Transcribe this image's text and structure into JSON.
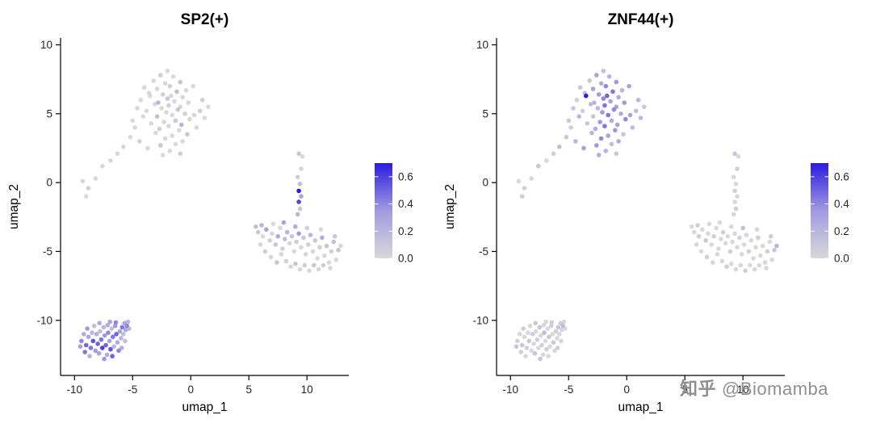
{
  "watermark": {
    "logo": "知乎",
    "handle": "@Biomamba"
  },
  "chart_data": {
    "type": "scatter",
    "description": "Two UMAP feature plots of the same single-cell embedding colored by regulon activity",
    "color_scale": {
      "domain": [
        0,
        0.7
      ],
      "stops": [
        [
          0,
          "#D8D8D8"
        ],
        [
          0.5,
          "#A29AE0"
        ],
        [
          1,
          "#2A1CDE"
        ]
      ],
      "legend_ticks": [
        0.0,
        0.2,
        0.4,
        0.6
      ]
    },
    "panels": [
      {
        "title": "SP2(+)",
        "xlabel": "umap_1",
        "ylabel": "umap_2",
        "xlim": [
          -11.2,
          13.6
        ],
        "ylim": [
          -14.0,
          10.5
        ],
        "xticks": [
          -10,
          -5,
          0,
          5,
          10
        ],
        "yticks": [
          -10,
          -5,
          0,
          5,
          10
        ],
        "value_index": 2
      },
      {
        "title": "ZNF44(+)",
        "xlabel": "umap_1",
        "ylabel": "umap_2",
        "xlim": [
          -11.2,
          13.6
        ],
        "ylim": [
          -14.0,
          10.5
        ],
        "xticks": [
          -10,
          -5,
          0,
          5,
          10
        ],
        "yticks": [
          -10,
          -5,
          0,
          5,
          10
        ],
        "value_index": 3
      }
    ],
    "shared_embedding_points_format": "[umap_1, umap_2, SP2_activity, ZNF44_activity]",
    "shared_embedding_points": [
      [
        -2.0,
        8.1,
        0,
        0.15
      ],
      [
        -2.6,
        7.8,
        0.05,
        0.3
      ],
      [
        -1.5,
        7.7,
        0,
        0.2
      ],
      [
        -3.2,
        7.4,
        0,
        0.1
      ],
      [
        -0.9,
        7.3,
        0.1,
        0.35
      ],
      [
        -2.2,
        7.2,
        0,
        0.25
      ],
      [
        -1.8,
        7.0,
        0.05,
        0.4
      ],
      [
        -4.0,
        6.9,
        0,
        0.1
      ],
      [
        -2.9,
        6.8,
        0,
        0.3
      ],
      [
        -0.4,
        6.7,
        0,
        0.2
      ],
      [
        -1.2,
        6.6,
        0.15,
        0.45
      ],
      [
        -3.6,
        6.5,
        0,
        0.15
      ],
      [
        -2.4,
        6.4,
        0.05,
        0.35
      ],
      [
        -1.7,
        6.3,
        0,
        0.5
      ],
      [
        -3.5,
        6.3,
        0,
        0.7
      ],
      [
        -0.7,
        6.2,
        0,
        0.25
      ],
      [
        -2.0,
        6.1,
        0.1,
        0.4
      ],
      [
        -4.3,
        6.0,
        0,
        0.05
      ],
      [
        -1.4,
        5.9,
        0,
        0.3
      ],
      [
        -2.8,
        5.8,
        0.2,
        0.2
      ],
      [
        -0.2,
        5.8,
        0,
        0.35
      ],
      [
        -3.1,
        5.7,
        0,
        0.15
      ],
      [
        -1.9,
        5.6,
        0.05,
        0.45
      ],
      [
        -0.9,
        5.5,
        0,
        0.3
      ],
      [
        -2.5,
        5.4,
        0,
        0.2
      ],
      [
        -4.6,
        5.4,
        0,
        0.1
      ],
      [
        -1.1,
        5.3,
        0.1,
        0.4
      ],
      [
        -3.8,
        5.2,
        0,
        0.05
      ],
      [
        -2.1,
        5.1,
        0,
        0.35
      ],
      [
        -0.5,
        5.0,
        0.05,
        0.25
      ],
      [
        -1.6,
        4.9,
        0,
        0.45
      ],
      [
        -2.9,
        4.8,
        0.15,
        0.1
      ],
      [
        -4.1,
        4.8,
        0,
        0.2
      ],
      [
        0.3,
        4.9,
        0,
        0.3
      ],
      [
        0.8,
        5.2,
        0.05,
        0.15
      ],
      [
        1.2,
        4.7,
        0,
        0.2
      ],
      [
        -0.1,
        4.6,
        0,
        0.4
      ],
      [
        -1.3,
        4.5,
        0.1,
        0.25
      ],
      [
        -2.3,
        4.4,
        0,
        0.35
      ],
      [
        -3.4,
        4.3,
        0,
        0.1
      ],
      [
        -0.8,
        4.2,
        0.2,
        0.3
      ],
      [
        -1.9,
        4.1,
        0,
        0.45
      ],
      [
        -4.8,
        4.0,
        0,
        0.05
      ],
      [
        0.5,
        4.0,
        0,
        0.15
      ],
      [
        -2.7,
        3.9,
        0.05,
        0.25
      ],
      [
        -1.0,
        3.8,
        0,
        0.35
      ],
      [
        -3.0,
        3.6,
        0,
        0.2
      ],
      [
        -0.3,
        3.5,
        0.1,
        0.1
      ],
      [
        -1.6,
        3.4,
        0,
        0.3
      ],
      [
        -2.2,
        3.2,
        0,
        0.4
      ],
      [
        -5.2,
        3.3,
        0,
        0.1
      ],
      [
        -4.4,
        3.0,
        0.05,
        0.2
      ],
      [
        -0.7,
        3.0,
        0,
        0.25
      ],
      [
        -1.3,
        2.8,
        0,
        0.15
      ],
      [
        -2.6,
        2.7,
        0.1,
        0.35
      ],
      [
        -3.7,
        2.5,
        0,
        0.3
      ],
      [
        -1.8,
        2.3,
        0,
        0.2
      ],
      [
        -0.9,
        2.1,
        0.05,
        0.1
      ],
      [
        -2.4,
        2.0,
        0,
        0.25
      ],
      [
        -5.8,
        2.6,
        0,
        0.15
      ],
      [
        -6.3,
        2.1,
        0,
        0.05
      ],
      [
        1.5,
        5.5,
        0,
        0.1
      ],
      [
        1.0,
        6.0,
        0.05,
        0.2
      ],
      [
        0.2,
        7.0,
        0,
        0.3
      ],
      [
        -5.0,
        4.5,
        0,
        0.1
      ],
      [
        -9.3,
        0.1,
        0,
        0
      ],
      [
        -8.8,
        -0.4,
        0.05,
        0.05
      ],
      [
        -8.2,
        0.3,
        0,
        0
      ],
      [
        -7.6,
        1.2,
        0,
        0.1
      ],
      [
        -6.9,
        1.6,
        0,
        0
      ],
      [
        -9.0,
        -1.0,
        0,
        0.05
      ],
      [
        5.8,
        -3.6,
        0.1,
        0
      ],
      [
        6.2,
        -3.9,
        0,
        0.05
      ],
      [
        6.5,
        -3.4,
        0.3,
        0
      ],
      [
        6.8,
        -4.2,
        0.05,
        0.1
      ],
      [
        7.0,
        -3.7,
        0,
        0
      ],
      [
        7.3,
        -4.5,
        0.1,
        0
      ],
      [
        7.5,
        -3.9,
        0.25,
        0.05
      ],
      [
        7.7,
        -3.3,
        0,
        0
      ],
      [
        7.9,
        -4.8,
        0.05,
        0
      ],
      [
        8.1,
        -4.1,
        0.15,
        0
      ],
      [
        8.3,
        -3.6,
        0.2,
        0.05
      ],
      [
        8.5,
        -4.4,
        0,
        0
      ],
      [
        8.7,
        -3.9,
        0.1,
        0
      ],
      [
        8.9,
        -5.0,
        0,
        0.05
      ],
      [
        9.1,
        -4.3,
        0.05,
        0
      ],
      [
        9.3,
        -3.7,
        0.35,
        0
      ],
      [
        9.5,
        -4.7,
        0,
        0
      ],
      [
        9.7,
        -4.0,
        0.1,
        0.05
      ],
      [
        9.9,
        -5.2,
        0,
        0
      ],
      [
        10.1,
        -4.5,
        0.05,
        0
      ],
      [
        10.3,
        -3.8,
        0.2,
        0
      ],
      [
        10.5,
        -5.0,
        0,
        0.05
      ],
      [
        10.7,
        -4.2,
        0.1,
        0
      ],
      [
        10.9,
        -5.5,
        0,
        0
      ],
      [
        11.1,
        -4.7,
        0.05,
        0
      ],
      [
        11.3,
        -4.0,
        0.25,
        0.05
      ],
      [
        11.5,
        -5.3,
        0,
        0
      ],
      [
        11.7,
        -4.6,
        0.1,
        0
      ],
      [
        11.9,
        -5.8,
        0,
        0
      ],
      [
        12.1,
        -5.0,
        0.05,
        0.05
      ],
      [
        12.3,
        -4.3,
        0.15,
        0
      ],
      [
        12.5,
        -5.6,
        0,
        0
      ],
      [
        12.7,
        -4.9,
        0.1,
        0.1
      ],
      [
        6.0,
        -4.5,
        0,
        0
      ],
      [
        6.4,
        -5.0,
        0.05,
        0
      ],
      [
        6.9,
        -5.4,
        0,
        0.05
      ],
      [
        7.4,
        -5.8,
        0.1,
        0
      ],
      [
        7.8,
        -5.2,
        0,
        0
      ],
      [
        8.2,
        -5.7,
        0.05,
        0
      ],
      [
        8.6,
        -6.1,
        0,
        0.05
      ],
      [
        9.0,
        -5.9,
        0.1,
        0
      ],
      [
        9.4,
        -6.3,
        0,
        0
      ],
      [
        9.8,
        -6.0,
        0.05,
        0
      ],
      [
        10.2,
        -6.4,
        0,
        0.05
      ],
      [
        10.6,
        -6.0,
        0.1,
        0
      ],
      [
        11.0,
        -6.3,
        0,
        0
      ],
      [
        11.4,
        -6.0,
        0.05,
        0
      ],
      [
        12.0,
        -6.2,
        0,
        0
      ],
      [
        5.6,
        -3.2,
        0.15,
        0
      ],
      [
        6.1,
        -3.1,
        0.2,
        0.05
      ],
      [
        7.1,
        -3.0,
        0,
        0
      ],
      [
        8.0,
        -2.9,
        0.3,
        0
      ],
      [
        9.0,
        -3.2,
        0.25,
        0
      ],
      [
        10.0,
        -3.3,
        0.05,
        0.15
      ],
      [
        11.2,
        -3.4,
        0,
        0
      ],
      [
        12.4,
        -3.9,
        0.1,
        0.05
      ],
      [
        12.9,
        -4.6,
        0,
        0.2
      ],
      [
        9.2,
        -2.3,
        0.2,
        0
      ],
      [
        9.4,
        -1.9,
        0.1,
        0.05
      ],
      [
        9.3,
        -1.4,
        0.6,
        0
      ],
      [
        9.5,
        -1.0,
        0.3,
        0
      ],
      [
        9.3,
        -0.6,
        0.7,
        0.05
      ],
      [
        9.4,
        -0.1,
        0.15,
        0
      ],
      [
        9.2,
        0.4,
        0.05,
        0
      ],
      [
        9.5,
        1.0,
        0,
        0.05
      ],
      [
        9.3,
        2.1,
        0.1,
        0.1
      ],
      [
        9.6,
        1.9,
        0,
        0
      ],
      [
        -9.4,
        -11.5,
        0.4,
        0.05
      ],
      [
        -9.2,
        -11.0,
        0.25,
        0
      ],
      [
        -9.0,
        -11.8,
        0.5,
        0.1
      ],
      [
        -8.8,
        -11.2,
        0.3,
        0
      ],
      [
        -8.6,
        -12.0,
        0.45,
        0.05
      ],
      [
        -8.5,
        -10.9,
        0.2,
        0
      ],
      [
        -8.4,
        -11.5,
        0.55,
        0.1
      ],
      [
        -8.2,
        -12.2,
        0.35,
        0
      ],
      [
        -8.1,
        -11.0,
        0.25,
        0.05
      ],
      [
        -8.0,
        -11.7,
        0.5,
        0
      ],
      [
        -7.9,
        -12.4,
        0.3,
        0.1
      ],
      [
        -7.8,
        -10.8,
        0.15,
        0
      ],
      [
        -7.7,
        -11.4,
        0.45,
        0.05
      ],
      [
        -7.6,
        -12.0,
        0.6,
        0
      ],
      [
        -7.5,
        -10.5,
        0.2,
        0.1
      ],
      [
        -7.4,
        -11.1,
        0.35,
        0
      ],
      [
        -7.3,
        -11.8,
        0.5,
        0.05
      ],
      [
        -7.2,
        -12.5,
        0.25,
        0
      ],
      [
        -7.1,
        -10.9,
        0.4,
        0.15
      ],
      [
        -7.0,
        -11.5,
        0.3,
        0
      ],
      [
        -6.9,
        -12.1,
        0.55,
        0.05
      ],
      [
        -6.8,
        -10.6,
        0.15,
        0
      ],
      [
        -6.7,
        -11.2,
        0.45,
        0.1
      ],
      [
        -6.6,
        -11.9,
        0.2,
        0
      ],
      [
        -6.5,
        -10.4,
        0.35,
        0.05
      ],
      [
        -6.4,
        -11.0,
        0.5,
        0
      ],
      [
        -6.3,
        -11.6,
        0.25,
        0.1
      ],
      [
        -6.2,
        -12.2,
        0.4,
        0
      ],
      [
        -6.1,
        -10.8,
        0.3,
        0.05
      ],
      [
        -6.0,
        -11.3,
        0.2,
        0
      ],
      [
        -5.9,
        -10.5,
        0.45,
        0.1
      ],
      [
        -5.8,
        -11.0,
        0.15,
        0
      ],
      [
        -5.7,
        -10.2,
        0.3,
        0.05
      ],
      [
        -5.6,
        -10.7,
        0.25,
        0
      ],
      [
        -5.5,
        -10.4,
        0.4,
        0.15
      ],
      [
        -5.4,
        -10.1,
        0.2,
        0
      ],
      [
        -8.9,
        -10.6,
        0.35,
        0.05
      ],
      [
        -8.3,
        -10.4,
        0.15,
        0
      ],
      [
        -7.85,
        -10.2,
        0.25,
        0.1
      ],
      [
        -6.95,
        -10.1,
        0.3,
        0
      ],
      [
        -9.1,
        -12.3,
        0.45,
        0.05
      ],
      [
        -8.7,
        -12.6,
        0.2,
        0
      ],
      [
        -7.45,
        -12.8,
        0.35,
        0.1
      ],
      [
        -6.75,
        -12.6,
        0.5,
        0
      ],
      [
        -5.95,
        -12.0,
        0.25,
        0.05
      ],
      [
        -5.65,
        -11.5,
        0.15,
        0
      ],
      [
        -9.5,
        -11.9,
        0.3,
        0.1
      ],
      [
        -5.3,
        -10.6,
        0.2,
        0
      ],
      [
        -6.45,
        -10.15,
        0.4,
        0.05
      ],
      [
        -7.15,
        -10.35,
        0.25,
        0
      ]
    ]
  }
}
